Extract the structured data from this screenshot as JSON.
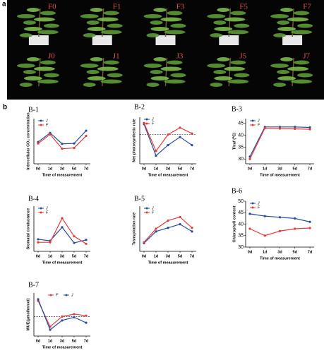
{
  "photo_panel": {
    "label": "a",
    "tiles": [
      "F0",
      "F1",
      "F3",
      "F5",
      "F7",
      "J0",
      "J1",
      "J3",
      "J5",
      "J7"
    ]
  },
  "chart_panel_label": "b",
  "chart_data": [
    {
      "type": "line",
      "title": "B-1",
      "ylabel": "Intercellular CO₂ concentration",
      "xlabel": "Time of measurement",
      "categories": [
        "0d",
        "1d",
        "3d",
        "5d",
        "7d"
      ],
      "ylim": [
        200,
        800
      ],
      "legend": "upper left",
      "zero_line": false,
      "series": [
        {
          "name": "J",
          "color": "#2a4d9b",
          "values": [
            490,
            610,
            465,
            470,
            640
          ]
        },
        {
          "name": "F",
          "color": "#e03c3c",
          "values": [
            470,
            590,
            400,
            410,
            570
          ]
        }
      ]
    },
    {
      "type": "line",
      "title": "B-2",
      "ylabel": "Net photosynthetic rate",
      "xlabel": "Time of measurement",
      "categories": [
        "0d",
        "1d",
        "3d",
        "5d",
        "7d"
      ],
      "ylim": [
        -2.5,
        1.5
      ],
      "legend": "upper left",
      "zero_line": true,
      "series": [
        {
          "name": "J",
          "color": "#2a4d9b",
          "values": [
            0.9,
            -1.8,
            -0.9,
            -0.2,
            -0.9
          ]
        },
        {
          "name": "F",
          "color": "#e03c3c",
          "values": [
            1.0,
            -1.4,
            0,
            0.6,
            0.1
          ]
        }
      ]
    },
    {
      "type": "line",
      "title": "B-3",
      "ylabel": "Tleaf (℃)",
      "xlabel": "Time of measurement",
      "categories": [
        "0d",
        "1d",
        "3d",
        "5d",
        "7d"
      ],
      "ylim": [
        28,
        47
      ],
      "yticks": [
        30,
        35,
        40,
        45
      ],
      "legend": "upper left",
      "zero_line": false,
      "series": [
        {
          "name": "J",
          "color": "#2a4d9b",
          "values": [
            31,
            43.5,
            43.5,
            43.5,
            43.3
          ]
        },
        {
          "name": "F",
          "color": "#e03c3c",
          "values": [
            30,
            43,
            42.8,
            42.7,
            42.5
          ]
        }
      ]
    },
    {
      "type": "line",
      "title": "B-4",
      "ylabel": "Stomatal conductance",
      "xlabel": "Time of measurement",
      "categories": [
        "0d",
        "1d",
        "3d",
        "5d",
        "7d"
      ],
      "ylim": [
        0,
        0.15
      ],
      "legend": "upper left",
      "zero_line": false,
      "series": [
        {
          "name": "J",
          "color": "#2a4d9b",
          "values": [
            0.04,
            0.035,
            0.08,
            0.028,
            0.038
          ]
        },
        {
          "name": "F",
          "color": "#e03c3c",
          "values": [
            0.03,
            0.03,
            0.11,
            0.05,
            0.025
          ]
        }
      ]
    },
    {
      "type": "line",
      "title": "B-5",
      "ylabel": "Transpiration rate",
      "xlabel": "Time of measurement",
      "categories": [
        "0d",
        "1d",
        "3d",
        "5d",
        "7d"
      ],
      "ylim": [
        0,
        2.5
      ],
      "legend": "upper left",
      "zero_line": false,
      "series": [
        {
          "name": "J",
          "color": "#2a4d9b",
          "values": [
            0.45,
            1.1,
            1.3,
            1.5,
            1.1
          ]
        },
        {
          "name": "F",
          "color": "#e03c3c",
          "values": [
            0.5,
            1.25,
            1.7,
            1.9,
            1.3
          ]
        }
      ]
    },
    {
      "type": "line",
      "title": "B-6",
      "ylabel": "Chlorophyll content",
      "xlabel": "Time of measurement",
      "categories": [
        "0d",
        "1d",
        "3d",
        "5d",
        "7d"
      ],
      "ylim": [
        30,
        50
      ],
      "yticks": [
        30,
        35,
        40,
        45,
        50
      ],
      "legend": "upper left",
      "zero_line": false,
      "series": [
        {
          "name": "J",
          "color": "#2a4d9b",
          "values": [
            44.5,
            43.5,
            43,
            42.5,
            41
          ]
        },
        {
          "name": "F",
          "color": "#e03c3c",
          "values": [
            38,
            35,
            37,
            38,
            38.3
          ]
        }
      ]
    },
    {
      "type": "line",
      "title": "B-7",
      "ylabel": "WUE(μmol/mmol)",
      "xlabel": "Time of measurement",
      "categories": [
        "0d",
        "1d",
        "3d",
        "5d",
        "7d"
      ],
      "ylim": [
        -2.5,
        3
      ],
      "legend": "upper center",
      "zero_line": true,
      "series": [
        {
          "name": "F",
          "color": "#e03c3c",
          "values": [
            2.0,
            -1.3,
            0,
            0.3,
            0.1
          ]
        },
        {
          "name": "J",
          "color": "#2a4d9b",
          "values": [
            2.2,
            -1.7,
            -0.5,
            -0.1,
            -0.8
          ]
        }
      ]
    }
  ]
}
